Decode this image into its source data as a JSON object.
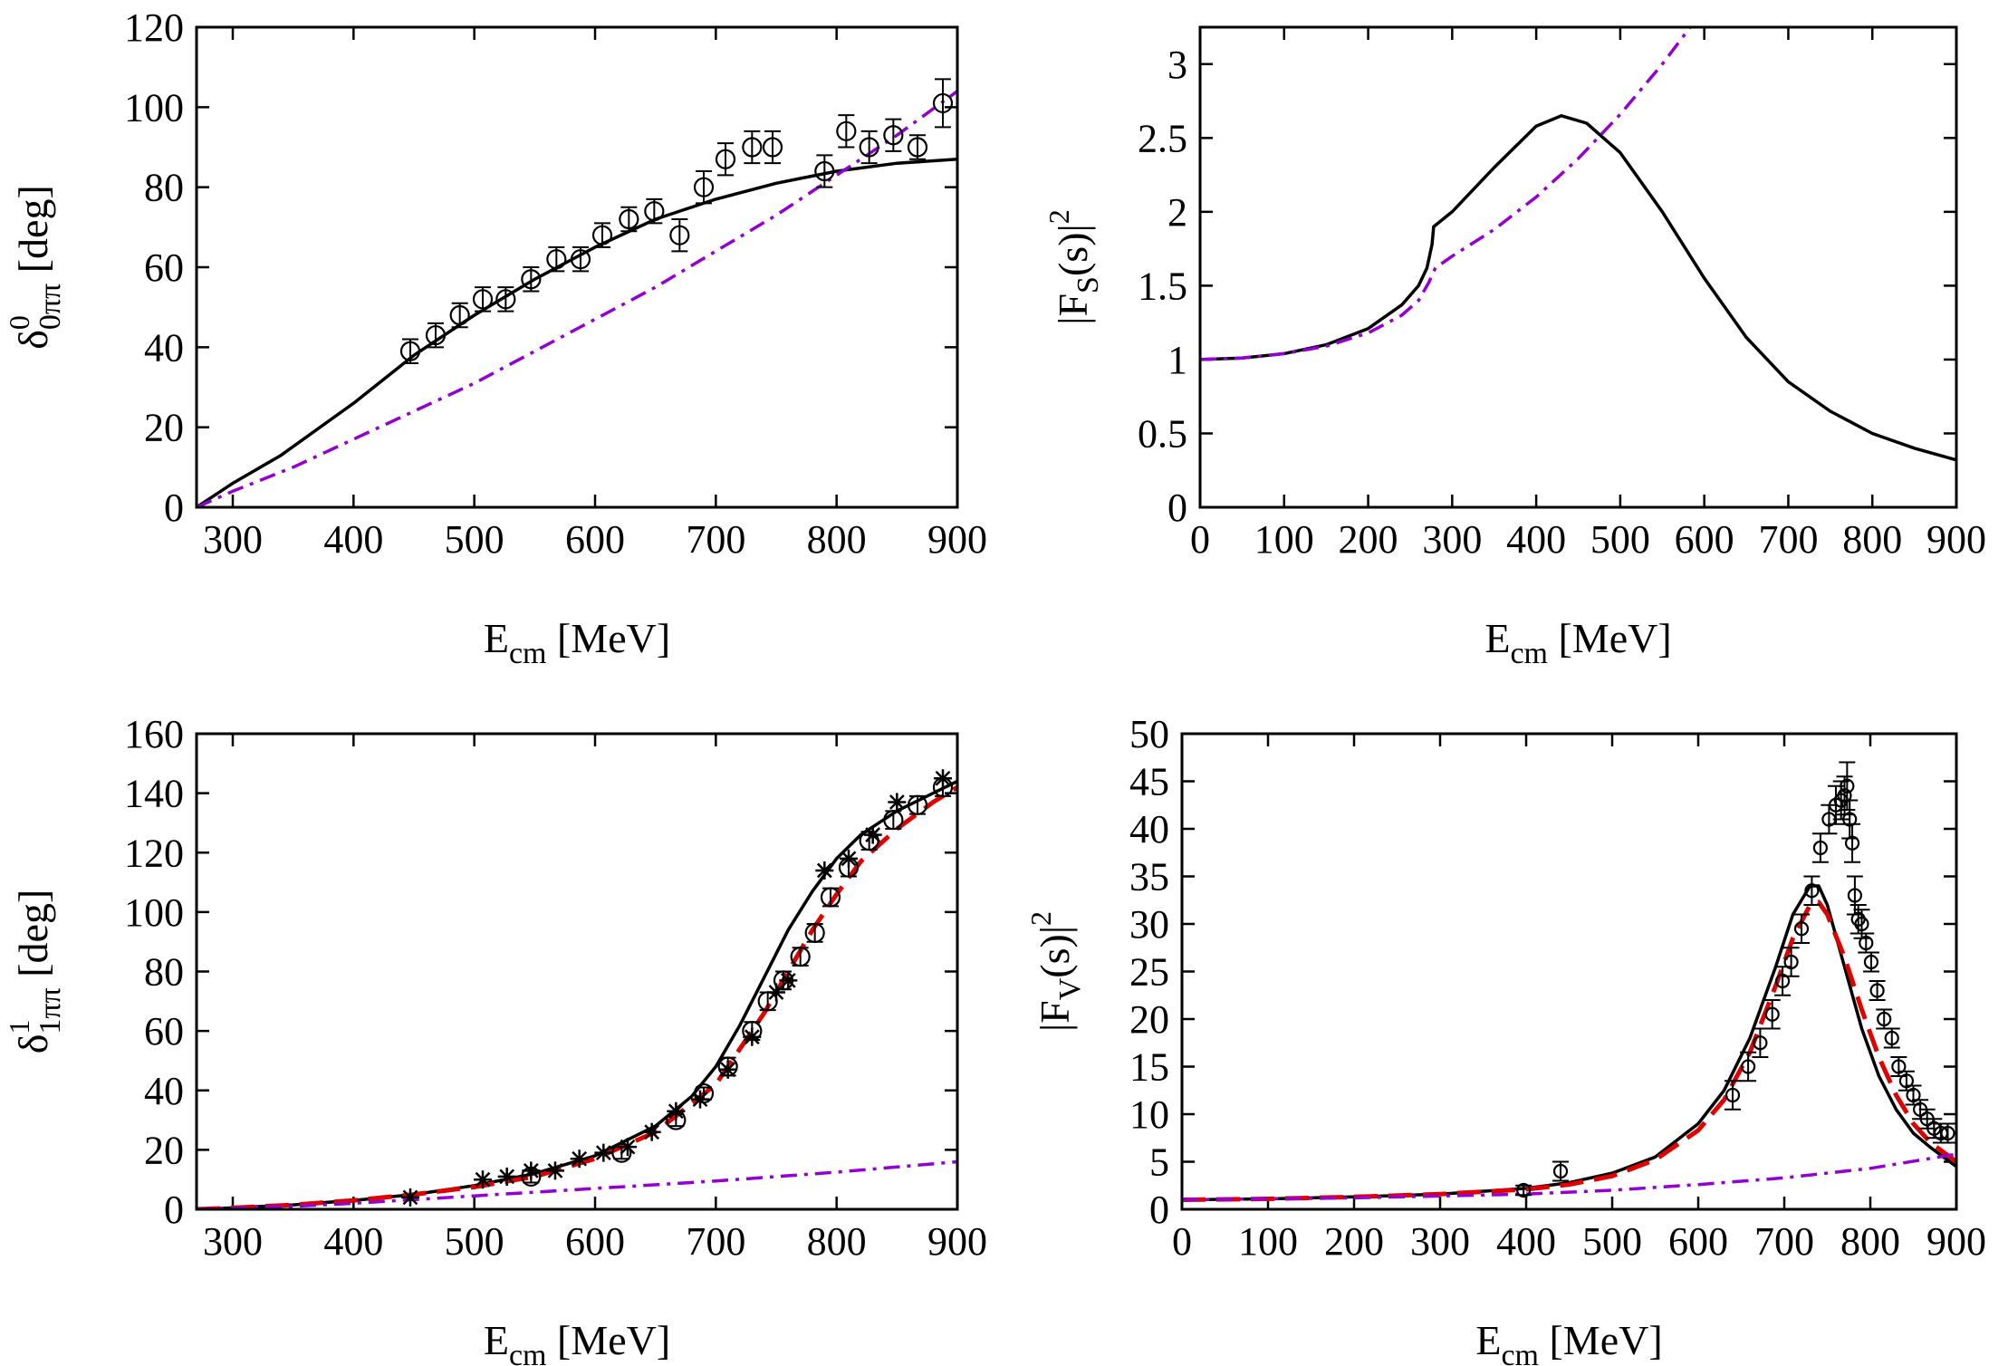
{
  "chart_data": [
    {
      "id": "p1",
      "type": "line",
      "xlabel_main": "E",
      "xlabel_sub": "cm",
      "xlabel_rest": " [MeV]",
      "ylabel_main": "δ",
      "ylabel_sup": "0",
      "ylabel_sub": "0ππ",
      "ylabel_rest": " [deg]",
      "xlim": [
        270,
        900
      ],
      "ylim": [
        0,
        120
      ],
      "xticks": [
        300,
        400,
        500,
        600,
        700,
        800,
        900
      ],
      "yticks": [
        0,
        20,
        40,
        60,
        80,
        100,
        120
      ],
      "series": [
        {
          "name": "fit",
          "style": "solid",
          "color": "#000000",
          "x": [
            270,
            300,
            340,
            400,
            450,
            500,
            550,
            600,
            650,
            700,
            750,
            800,
            850,
            900
          ],
          "y": [
            0,
            6,
            13,
            26,
            38,
            48,
            57,
            65,
            72,
            77,
            81,
            84,
            86,
            87
          ]
        },
        {
          "name": "alt",
          "style": "dashdot",
          "color": "#9400d3",
          "x": [
            270,
            300,
            350,
            400,
            450,
            500,
            550,
            600,
            650,
            700,
            750,
            800,
            850,
            900
          ],
          "y": [
            0,
            4,
            10,
            17,
            24,
            31,
            39,
            47,
            55,
            64,
            73,
            83,
            93,
            104
          ]
        }
      ],
      "points": [
        {
          "name": "data-circle",
          "marker": "circle",
          "x": [
            447,
            468,
            488,
            507,
            526,
            547,
            568,
            588,
            606,
            628,
            649,
            670,
            690,
            708,
            730,
            747,
            790,
            808,
            827,
            847,
            867,
            888
          ],
          "y": [
            39,
            43,
            48,
            52,
            52,
            57,
            62,
            62,
            68,
            72,
            74,
            68,
            80,
            87,
            90,
            90,
            84,
            94,
            90,
            93,
            90,
            101
          ],
          "err": [
            3,
            3,
            3,
            3,
            3,
            3,
            3,
            3,
            3,
            3,
            3,
            4,
            4,
            4,
            4,
            4,
            4,
            4,
            4,
            4,
            3,
            6
          ]
        }
      ]
    },
    {
      "id": "p2",
      "type": "line",
      "xlabel_main": "E",
      "xlabel_sub": "cm",
      "xlabel_rest": " [MeV]",
      "ylabel_main": "|F",
      "ylabel_sup": "2",
      "ylabel_sub": "S",
      "ylabel_rest": "(s)|",
      "xlim": [
        0,
        900
      ],
      "ylim": [
        0,
        3.25
      ],
      "xticks": [
        0,
        100,
        200,
        300,
        400,
        500,
        600,
        700,
        800,
        900
      ],
      "yticks": [
        0,
        0.5,
        1,
        1.5,
        2,
        2.5,
        3
      ],
      "series": [
        {
          "name": "fit",
          "style": "solid",
          "color": "#000000",
          "x": [
            0,
            50,
            100,
            150,
            200,
            240,
            260,
            270,
            276,
            278,
            300,
            350,
            400,
            430,
            460,
            500,
            550,
            600,
            650,
            700,
            750,
            800,
            850,
            900
          ],
          "y": [
            1,
            1.01,
            1.04,
            1.1,
            1.21,
            1.37,
            1.5,
            1.62,
            1.78,
            1.9,
            2.0,
            2.3,
            2.58,
            2.65,
            2.6,
            2.4,
            2.0,
            1.55,
            1.15,
            0.85,
            0.65,
            0.5,
            0.4,
            0.32
          ]
        },
        {
          "name": "alt",
          "style": "dashdot",
          "color": "#9400d3",
          "x": [
            0,
            50,
            100,
            150,
            200,
            240,
            260,
            272,
            280,
            300,
            350,
            400,
            450,
            500,
            550,
            590
          ],
          "y": [
            1,
            1.01,
            1.04,
            1.09,
            1.18,
            1.3,
            1.4,
            1.52,
            1.62,
            1.7,
            1.88,
            2.1,
            2.36,
            2.66,
            3.0,
            3.3
          ]
        }
      ],
      "points": []
    },
    {
      "id": "p3",
      "type": "line",
      "xlabel_main": "E",
      "xlabel_sub": "cm",
      "xlabel_rest": " [MeV]",
      "ylabel_main": "δ",
      "ylabel_sup": "1",
      "ylabel_sub": "1ππ",
      "ylabel_rest": " [deg]",
      "xlim": [
        270,
        900
      ],
      "ylim": [
        0,
        160
      ],
      "xticks": [
        300,
        400,
        500,
        600,
        700,
        800,
        900
      ],
      "yticks": [
        0,
        20,
        40,
        60,
        80,
        100,
        120,
        140,
        160
      ],
      "series": [
        {
          "name": "fit",
          "style": "solid",
          "color": "#000000",
          "x": [
            270,
            300,
            350,
            400,
            450,
            500,
            550,
            600,
            650,
            680,
            700,
            720,
            740,
            760,
            780,
            800,
            820,
            850,
            880,
            900
          ],
          "y": [
            0,
            0.5,
            1.5,
            3,
            5,
            8,
            12,
            18,
            28,
            38,
            48,
            62,
            78,
            94,
            107,
            118,
            126,
            134,
            140,
            144
          ]
        },
        {
          "name": "fit2",
          "style": "dashed",
          "color": "#e00000",
          "x": [
            270,
            300,
            350,
            400,
            450,
            500,
            550,
            600,
            650,
            700,
            720,
            740,
            760,
            780,
            800,
            820,
            850,
            880,
            900
          ],
          "y": [
            0,
            0.5,
            1.5,
            3,
            5,
            7.5,
            11,
            17,
            26,
            42,
            54,
            66,
            80,
            94,
            106,
            117,
            128,
            137,
            142
          ]
        },
        {
          "name": "alt",
          "style": "dashdot",
          "color": "#9400d3",
          "x": [
            270,
            350,
            400,
            500,
            600,
            700,
            800,
            900
          ],
          "y": [
            0,
            1,
            2,
            4.5,
            7,
            9.5,
            12.5,
            16
          ]
        }
      ],
      "points": [
        {
          "name": "data-circle",
          "marker": "circle",
          "x": [
            547,
            622,
            667,
            690,
            710,
            730,
            743,
            756,
            770,
            782,
            795,
            810,
            827,
            847,
            867,
            888
          ],
          "y": [
            11,
            19,
            30,
            39,
            48,
            60,
            70,
            77,
            85,
            93,
            105,
            115,
            124,
            131,
            136,
            142
          ],
          "err": [
            2,
            2,
            2,
            2,
            3,
            3,
            3,
            3,
            3,
            3,
            3,
            3,
            3,
            3,
            3,
            3
          ]
        },
        {
          "name": "data-star",
          "marker": "star",
          "x": [
            447,
            507,
            527,
            547,
            567,
            587,
            607,
            627,
            647,
            667,
            687,
            710,
            730,
            750,
            760,
            790,
            810,
            830,
            850,
            888
          ],
          "y": [
            4,
            10,
            11,
            13,
            13,
            17,
            19,
            21,
            26,
            33,
            37,
            47,
            58,
            73,
            77,
            114,
            118,
            126,
            137,
            145
          ]
        }
      ]
    },
    {
      "id": "p4",
      "type": "line",
      "xlabel_main": "E",
      "xlabel_sub": "cm",
      "xlabel_rest": " [MeV]",
      "ylabel_main": "|F",
      "ylabel_sup": "2",
      "ylabel_sub": "V",
      "ylabel_rest": "(s)|",
      "xlim": [
        0,
        900
      ],
      "ylim": [
        0,
        50
      ],
      "xticks": [
        0,
        100,
        200,
        300,
        400,
        500,
        600,
        700,
        800,
        900
      ],
      "yticks": [
        0,
        5,
        10,
        15,
        20,
        25,
        30,
        35,
        40,
        45,
        50
      ],
      "series": [
        {
          "name": "fit",
          "style": "solid",
          "color": "#000000",
          "x": [
            0,
            100,
            200,
            300,
            400,
            450,
            500,
            550,
            600,
            630,
            660,
            690,
            710,
            730,
            740,
            750,
            770,
            790,
            810,
            830,
            850,
            870,
            900
          ],
          "y": [
            1,
            1.1,
            1.3,
            1.6,
            2.2,
            2.8,
            3.8,
            5.5,
            9,
            12.5,
            18,
            25.5,
            31,
            34,
            34,
            32,
            25.5,
            19,
            14,
            10.5,
            8,
            6.5,
            4.5
          ]
        },
        {
          "name": "fit2",
          "style": "dashed",
          "color": "#e00000",
          "x": [
            0,
            100,
            200,
            300,
            400,
            450,
            500,
            550,
            600,
            630,
            660,
            690,
            710,
            730,
            740,
            750,
            770,
            790,
            810,
            830,
            850,
            870,
            900
          ],
          "y": [
            1,
            1.1,
            1.3,
            1.6,
            2.1,
            2.6,
            3.5,
            5.2,
            8.3,
            11.5,
            16.5,
            23.5,
            28.5,
            32,
            32.3,
            31,
            26.5,
            21,
            16,
            12,
            9,
            7,
            5
          ]
        },
        {
          "name": "alt",
          "style": "dashdot",
          "color": "#9400d3",
          "x": [
            0,
            200,
            400,
            500,
            600,
            700,
            800,
            900
          ],
          "y": [
            1,
            1.2,
            1.6,
            2.0,
            2.6,
            3.3,
            4.3,
            5.8
          ]
        }
      ],
      "points": [
        {
          "name": "data-circle",
          "marker": "circle",
          "x": [
            397,
            440,
            640,
            658,
            672,
            686,
            698,
            708,
            720,
            732,
            742,
            752,
            760,
            766,
            770,
            773,
            776,
            779,
            782,
            786,
            790,
            795,
            801,
            808,
            816,
            825,
            833,
            842,
            850,
            858,
            866,
            874,
            882,
            890
          ],
          "y": [
            2,
            4,
            12,
            15,
            17.5,
            20.5,
            24,
            26,
            29.5,
            33.5,
            38,
            41,
            42.5,
            43,
            43.5,
            44.5,
            41,
            38.5,
            33,
            30.5,
            30,
            28,
            26,
            23,
            20,
            18,
            15,
            13.5,
            12,
            10.5,
            9.5,
            8.5,
            8,
            8
          ],
          "err": [
            0.5,
            1,
            1.5,
            1.5,
            1.5,
            1.5,
            1.5,
            1.5,
            1.5,
            1.5,
            1.5,
            1.5,
            2,
            2,
            2,
            2.5,
            2,
            2,
            2,
            1.5,
            1.5,
            1,
            1,
            1,
            1,
            1,
            1,
            1,
            1,
            1,
            1,
            1,
            1,
            1
          ]
        }
      ]
    }
  ]
}
